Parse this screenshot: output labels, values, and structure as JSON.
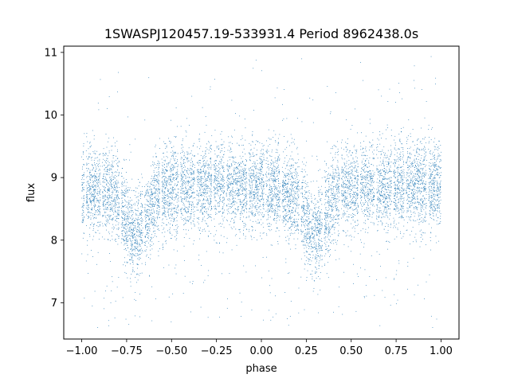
{
  "chart_data": {
    "type": "scatter",
    "title": "1SWASPJ120457.19-533931.4 Period 8962438.0s",
    "xlabel": "phase",
    "ylabel": "flux",
    "xlim": [
      -1.1,
      1.1
    ],
    "ylim": [
      6.42,
      11.1
    ],
    "xticks": [
      -1.0,
      -0.75,
      -0.5,
      -0.25,
      0.0,
      0.25,
      0.5,
      0.75,
      1.0
    ],
    "xtick_labels": [
      "−1.00",
      "−0.75",
      "−0.50",
      "−0.25",
      "0.00",
      "0.25",
      "0.50",
      "0.75",
      "1.00"
    ],
    "yticks": [
      7,
      8,
      9,
      10,
      11
    ],
    "ytick_labels": [
      "7",
      "8",
      "9",
      "10",
      "11"
    ],
    "grid": false,
    "color": "#1f77b4",
    "series": [
      {
        "profile": {
          "x": [
            -1.0,
            -0.95,
            -0.9,
            -0.85,
            -0.8,
            -0.75,
            -0.7,
            -0.65,
            -0.6,
            -0.55,
            -0.5,
            -0.45,
            -0.4,
            -0.35,
            -0.3,
            -0.25,
            -0.2,
            -0.15,
            -0.1,
            -0.05,
            0.0,
            0.05,
            0.1,
            0.15,
            0.2,
            0.25,
            0.3,
            0.35,
            0.4,
            0.45,
            0.5,
            0.55,
            0.6,
            0.65,
            0.7,
            0.75,
            0.8,
            0.85,
            0.9,
            0.95,
            1.0
          ],
          "median_flux": [
            8.85,
            8.8,
            8.8,
            8.75,
            8.7,
            8.3,
            8.05,
            8.3,
            8.65,
            8.8,
            8.85,
            8.85,
            8.85,
            8.85,
            8.85,
            8.9,
            8.9,
            8.9,
            8.85,
            8.85,
            8.85,
            8.8,
            8.8,
            8.75,
            8.7,
            8.3,
            8.05,
            8.3,
            8.65,
            8.8,
            8.85,
            8.85,
            8.85,
            8.85,
            8.85,
            8.9,
            8.9,
            8.9,
            8.85,
            8.85,
            8.85
          ],
          "spread": 0.35
        },
        "phase_gaps": [
          [
            -0.985,
            -0.975
          ],
          [
            -0.895,
            -0.885
          ],
          [
            -0.79,
            -0.78
          ],
          [
            -0.66,
            -0.65
          ],
          [
            -0.565,
            -0.555
          ],
          [
            -0.46,
            -0.45
          ],
          [
            -0.37,
            -0.36
          ],
          [
            -0.275,
            -0.265
          ],
          [
            -0.205,
            -0.195
          ],
          [
            -0.08,
            -0.07
          ],
          [
            0.015,
            0.025
          ],
          [
            0.105,
            0.115
          ],
          [
            0.21,
            0.22
          ],
          [
            0.34,
            0.35
          ],
          [
            0.435,
            0.445
          ],
          [
            0.54,
            0.55
          ],
          [
            0.63,
            0.64
          ],
          [
            0.725,
            0.735
          ],
          [
            0.795,
            0.805
          ],
          [
            0.92,
            0.93
          ]
        ],
        "point_count": 9000
      }
    ]
  }
}
